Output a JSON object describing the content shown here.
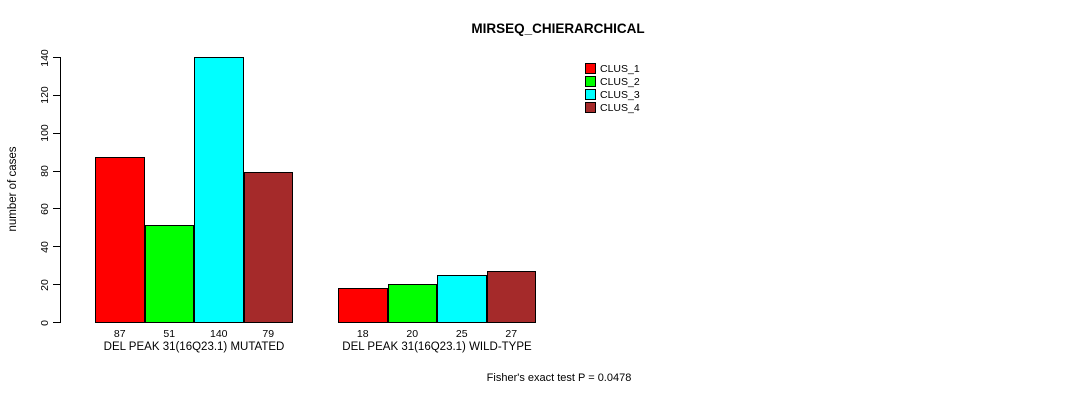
{
  "chart_data": {
    "type": "bar",
    "title": "MIRSEQ_CHIERARCHICAL",
    "xlabel": "",
    "ylabel": "number of cases",
    "ylim": [
      0,
      140
    ],
    "yticks": [
      0,
      20,
      40,
      60,
      80,
      100,
      120,
      140
    ],
    "grid": false,
    "legend_position": "top-right",
    "series": [
      {
        "name": "CLUS_1",
        "color": "#FF0000"
      },
      {
        "name": "CLUS_2",
        "color": "#00FF00"
      },
      {
        "name": "CLUS_3",
        "color": "#00FFFF"
      },
      {
        "name": "CLUS_4",
        "color": "#A52A2A"
      }
    ],
    "groups": [
      {
        "label": "DEL PEAK 31(16Q23.1) MUTATED",
        "values": [
          87,
          51,
          140,
          79
        ]
      },
      {
        "label": "DEL PEAK 31(16Q23.1) WILD-TYPE",
        "values": [
          18,
          20,
          25,
          27
        ]
      }
    ],
    "bar_value_labels": [
      [
        "87",
        "51",
        "140",
        "79"
      ],
      [
        "18",
        "20",
        "25",
        "27"
      ]
    ],
    "annotation": "Fisher's exact test P = 0.0478"
  }
}
